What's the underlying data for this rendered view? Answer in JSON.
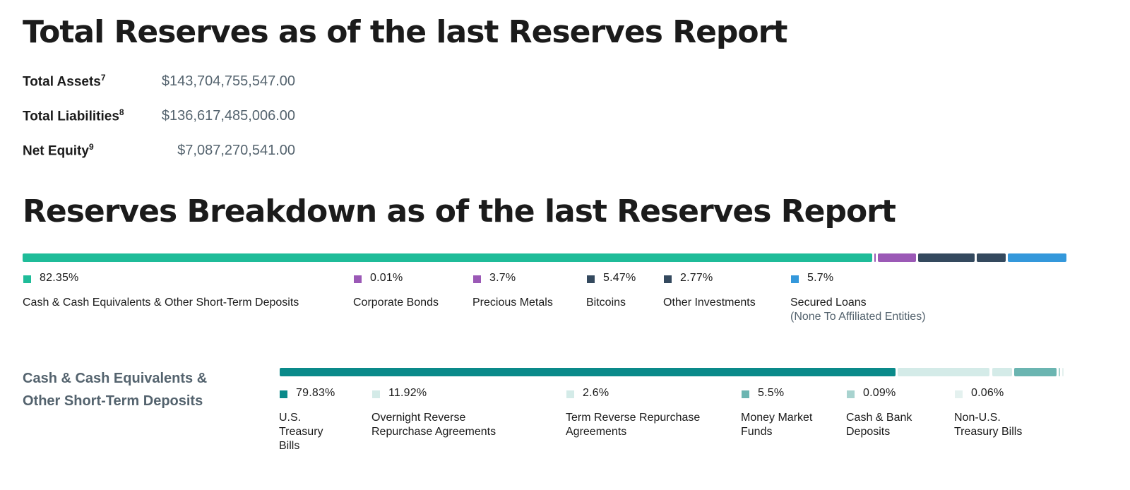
{
  "summary": {
    "title": "Total Reserves as of the last Reserves Report",
    "rows": [
      {
        "label": "Total Assets",
        "note": "7",
        "value": "$143,704,755,547.00"
      },
      {
        "label": "Total Liabilities",
        "note": "8",
        "value": "$136,617,485,006.00"
      },
      {
        "label": "Net Equity",
        "note": "9",
        "value": "$7,087,270,541.00"
      }
    ]
  },
  "breakdown": {
    "title": "Reserves Breakdown as of the last Reserves Report",
    "sub_section_title": "Cash & Cash Equivalents & Other Short-Term Deposits"
  },
  "chart_data": [
    {
      "type": "bar",
      "orientation": "stacked-horizontal",
      "title": "Reserves Breakdown as of the last Reserves Report",
      "categories": [
        "Cash & Cash Equivalents & Other Short-Term Deposits",
        "Corporate Bonds",
        "Precious Metals",
        "Bitcoins",
        "Other Investments",
        "Secured Loans"
      ],
      "category_notes": [
        "",
        "",
        "",
        "",
        "",
        "(None To Affiliated Entities)"
      ],
      "values": [
        82.35,
        0.01,
        3.7,
        5.47,
        2.77,
        5.7
      ],
      "labels": [
        "82.35%",
        "0.01%",
        "3.7%",
        "5.47%",
        "2.77%",
        "5.7%"
      ],
      "colors": [
        "#1fbc99",
        "#9b59b6",
        "#9b59b6",
        "#34495e",
        "#34495e",
        "#3498db"
      ],
      "unit": "%"
    },
    {
      "type": "bar",
      "orientation": "stacked-horizontal",
      "title": "Cash & Cash Equivalents & Other Short-Term Deposits",
      "categories": [
        "U.S. Treasury Bills",
        "Overnight Reverse Repurchase Agreements",
        "Term Reverse Repurchase Agreements",
        "Money Market Funds",
        "Cash & Bank Deposits",
        "Non-U.S. Treasury Bills"
      ],
      "values": [
        79.83,
        11.92,
        2.6,
        5.5,
        0.09,
        0.06
      ],
      "labels": [
        "79.83%",
        "11.92%",
        "2.6%",
        "5.5%",
        "0.09%",
        "0.06%"
      ],
      "colors": [
        "#0a8a8a",
        "#d4ebe8",
        "#d4ebe8",
        "#6bb5b1",
        "#a8d3cf",
        "#e4f1ef"
      ],
      "unit": "%"
    }
  ]
}
